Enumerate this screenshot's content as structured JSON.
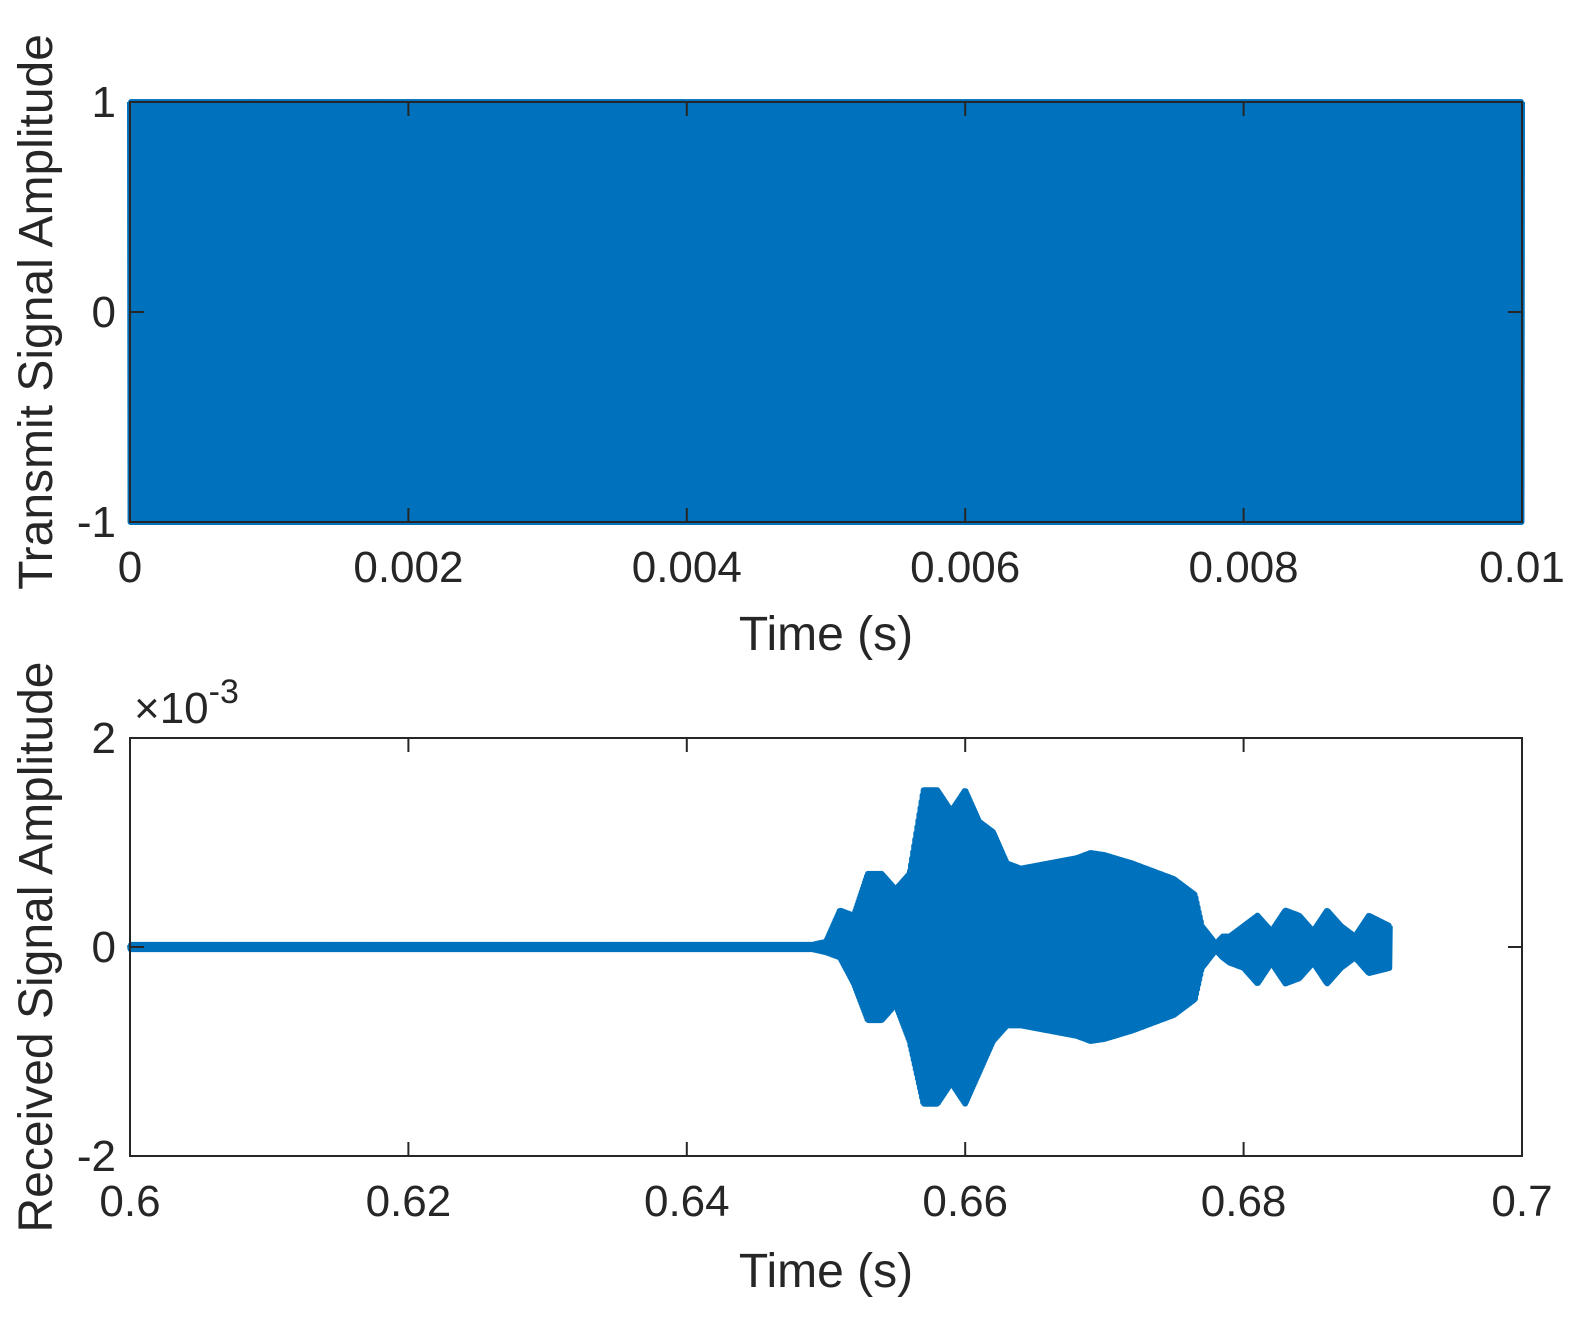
{
  "chart_data": [
    {
      "type": "line",
      "xlabel": "Time (s)",
      "ylabel": "Transmit Signal Amplitude",
      "xlim": [
        0,
        0.01
      ],
      "ylim": [
        -1,
        1
      ],
      "xticks": [
        0,
        0.002,
        0.004,
        0.006,
        0.008,
        0.01
      ],
      "xtick_labels": [
        "0",
        "0.002",
        "0.004",
        "0.006",
        "0.008",
        "0.01"
      ],
      "yticks": [
        -1,
        0,
        1
      ],
      "ytick_labels": [
        "-1",
        "0",
        "1"
      ],
      "grid": false,
      "line_color": "#0072BD",
      "series": [
        {
          "description_shape": "dense full-amplitude oscillation",
          "x": [
            0,
            0.001,
            0.002,
            0.003,
            0.004,
            0.005,
            0.006,
            0.007,
            0.008,
            0.009,
            0.01
          ],
          "envelope_upper": [
            1,
            1,
            1,
            1,
            1,
            1,
            1,
            1,
            1,
            1,
            1
          ],
          "envelope_lower": [
            -1,
            -1,
            -1,
            -1,
            -1,
            -1,
            -1,
            -1,
            -1,
            -1,
            -1
          ]
        }
      ]
    },
    {
      "type": "line",
      "xlabel": "Time (s)",
      "ylabel": "Received Signal Amplitude",
      "exponent_label": "×10",
      "exponent_power": "-3",
      "xlim": [
        0.6,
        0.7
      ],
      "ylim": [
        -2,
        2
      ],
      "xticks": [
        0.6,
        0.62,
        0.64,
        0.66,
        0.68,
        0.7
      ],
      "xtick_labels": [
        "0.6",
        "0.62",
        "0.64",
        "0.66",
        "0.68",
        "0.7"
      ],
      "yticks": [
        -2,
        0,
        2
      ],
      "ytick_labels": [
        "-2",
        "0",
        "2"
      ],
      "grid": false,
      "line_color": "#0072BD",
      "series": [
        {
          "x": [
            0.6,
            0.649,
            0.65,
            0.651,
            0.652,
            0.653,
            0.654,
            0.655,
            0.656,
            0.657,
            0.658,
            0.659,
            0.66,
            0.661,
            0.662,
            0.663,
            0.664,
            0.666,
            0.668,
            0.669,
            0.67,
            0.672,
            0.674,
            0.675,
            0.6765,
            0.677,
            0.678,
            0.6785,
            0.679,
            0.68,
            0.681,
            0.682,
            0.683,
            0.684,
            0.685,
            0.686,
            0.687,
            0.688,
            0.689,
            0.6905
          ],
          "envelope_upper": [
            0.02,
            0.02,
            0.05,
            0.35,
            0.3,
            0.7,
            0.7,
            0.55,
            0.7,
            1.5,
            1.5,
            1.3,
            1.5,
            1.2,
            1.1,
            0.8,
            0.75,
            0.8,
            0.85,
            0.9,
            0.88,
            0.8,
            0.7,
            0.65,
            0.5,
            0.2,
            0.03,
            0.1,
            0.1,
            0.2,
            0.3,
            0.15,
            0.35,
            0.3,
            0.15,
            0.35,
            0.2,
            0.1,
            0.3,
            0.2
          ],
          "envelope_lower": [
            -0.02,
            -0.02,
            -0.05,
            -0.1,
            -0.35,
            -0.7,
            -0.7,
            -0.55,
            -0.9,
            -1.5,
            -1.5,
            -1.3,
            -1.5,
            -1.2,
            -0.9,
            -0.75,
            -0.75,
            -0.8,
            -0.85,
            -0.9,
            -0.88,
            -0.8,
            -0.7,
            -0.65,
            -0.5,
            -0.2,
            -0.03,
            -0.1,
            -0.15,
            -0.2,
            -0.35,
            -0.15,
            -0.35,
            -0.3,
            -0.15,
            -0.35,
            -0.2,
            -0.1,
            -0.25,
            -0.2
          ]
        }
      ]
    }
  ]
}
